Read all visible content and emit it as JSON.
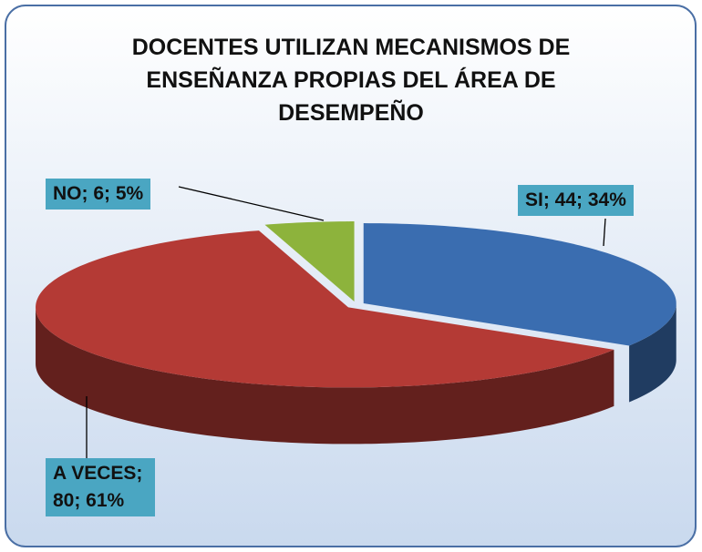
{
  "chart_data": {
    "type": "pie",
    "title": "DOCENTES UTILIZAN MECANISMOS DE ENSEÑANZA PROPIAS DEL ÁREA DE DESEMPEÑO",
    "categories": [
      "SI",
      "A VECES",
      "NO"
    ],
    "values": [
      44,
      80,
      6
    ],
    "value_labels": [
      "SI; 44; 34%",
      "A VECES; 80; 61%",
      "NO; 6; 5%"
    ],
    "colors": [
      "#3a6db0",
      "#b43a35",
      "#8db33c"
    ]
  }
}
